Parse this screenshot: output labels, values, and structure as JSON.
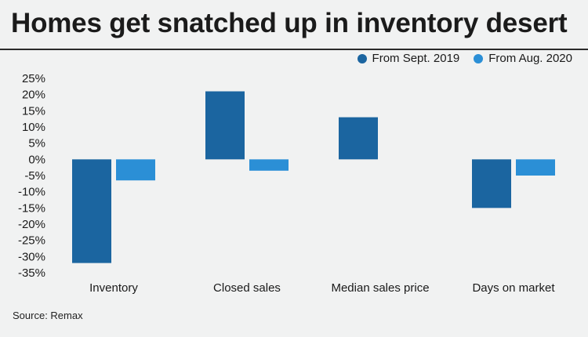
{
  "title": "Homes get snatched up in inventory desert",
  "source": "Source: Remax",
  "colors": {
    "sept2019": "#1b65a0",
    "aug2020": "#2b8fd6"
  },
  "chart_data": {
    "type": "bar",
    "categories": [
      "Inventory",
      "Closed sales",
      "Median sales price",
      "Days on market"
    ],
    "series": [
      {
        "name": "From Sept. 2019",
        "values": [
          -32,
          21,
          13,
          -15
        ]
      },
      {
        "name": "From Aug. 2020",
        "values": [
          -6.5,
          -3.5,
          null,
          -5
        ]
      }
    ],
    "ylim": [
      -35,
      25
    ],
    "yticks": [
      25,
      20,
      15,
      10,
      5,
      0,
      -5,
      -10,
      -15,
      -20,
      -25,
      -30,
      -35
    ],
    "ytick_labels": [
      "25%",
      "20%",
      "15%",
      "10%",
      "5%",
      "0%",
      "-5%",
      "-10%",
      "-15%",
      "-20%",
      "-25%",
      "-30%",
      "-35%"
    ],
    "grid": false,
    "legend_position": "top-right"
  }
}
